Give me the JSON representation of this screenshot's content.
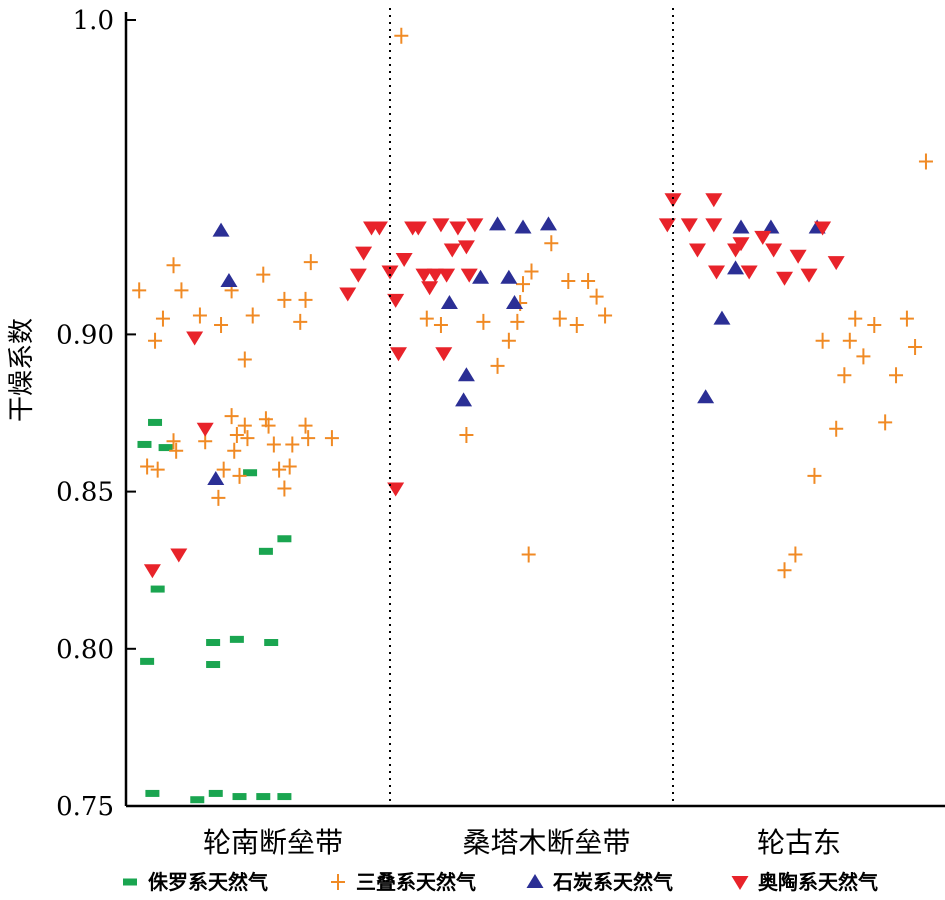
{
  "chart_data": {
    "type": "scatter",
    "title": "",
    "xlabel": "",
    "ylabel": "干燥系数",
    "ylim": [
      0.75,
      1.0
    ],
    "yticks": [
      "0.75",
      "0.80",
      "0.85",
      "0.90",
      "1.0"
    ],
    "ytick_values": [
      0.75,
      0.8,
      0.85,
      0.9,
      1.0
    ],
    "categories": [
      "轮南断垒带",
      "桑塔木断垒带",
      "轮古东"
    ],
    "grid": false,
    "legend_position": "bottom",
    "colors": {
      "Jurassic": "#1aa550",
      "Triassic": "#f08a24",
      "Carboniferous": "#2b2f95",
      "Ordovician": "#e8232a",
      "axis": "#000000",
      "divider": "#000000"
    },
    "series": [
      {
        "name": "侏罗系天然气",
        "marker": "dash",
        "color": "#1aa550",
        "points": [
          [
            0.07,
            0.865
          ],
          [
            0.11,
            0.872
          ],
          [
            0.15,
            0.864
          ],
          [
            0.08,
            0.796
          ],
          [
            0.12,
            0.819
          ],
          [
            0.33,
            0.802
          ],
          [
            0.33,
            0.795
          ],
          [
            0.42,
            0.803
          ],
          [
            0.55,
            0.802
          ],
          [
            0.47,
            0.856
          ],
          [
            0.53,
            0.831
          ],
          [
            0.6,
            0.835
          ],
          [
            0.1,
            0.754
          ],
          [
            0.27,
            0.752
          ],
          [
            0.34,
            0.754
          ],
          [
            0.43,
            0.753
          ],
          [
            0.52,
            0.753
          ],
          [
            0.6,
            0.753
          ]
        ]
      },
      {
        "name": "三叠系天然气",
        "marker": "plus",
        "color": "#f08a24",
        "points": [
          [
            0.05,
            0.914
          ],
          [
            0.11,
            0.898
          ],
          [
            0.14,
            0.905
          ],
          [
            0.18,
            0.922
          ],
          [
            0.21,
            0.914
          ],
          [
            0.28,
            0.906
          ],
          [
            0.36,
            0.903
          ],
          [
            0.4,
            0.914
          ],
          [
            0.45,
            0.892
          ],
          [
            0.48,
            0.906
          ],
          [
            0.52,
            0.919
          ],
          [
            0.6,
            0.911
          ],
          [
            0.66,
            0.904
          ],
          [
            0.68,
            0.911
          ],
          [
            0.7,
            0.923
          ],
          [
            0.08,
            0.858
          ],
          [
            0.12,
            0.857
          ],
          [
            0.18,
            0.866
          ],
          [
            0.19,
            0.863
          ],
          [
            0.3,
            0.866
          ],
          [
            0.35,
            0.848
          ],
          [
            0.37,
            0.857
          ],
          [
            0.4,
            0.874
          ],
          [
            0.41,
            0.863
          ],
          [
            0.42,
            0.868
          ],
          [
            0.43,
            0.855
          ],
          [
            0.45,
            0.871
          ],
          [
            0.46,
            0.867
          ],
          [
            0.53,
            0.873
          ],
          [
            0.54,
            0.871
          ],
          [
            0.56,
            0.865
          ],
          [
            0.58,
            0.857
          ],
          [
            0.6,
            0.851
          ],
          [
            0.62,
            0.858
          ],
          [
            0.63,
            0.865
          ],
          [
            0.68,
            0.871
          ],
          [
            0.69,
            0.867
          ],
          [
            0.78,
            0.867
          ],
          [
            1.13,
            0.905
          ],
          [
            1.18,
            0.903
          ],
          [
            1.27,
            0.868
          ],
          [
            1.33,
            0.904
          ],
          [
            1.38,
            0.89
          ],
          [
            1.42,
            0.898
          ],
          [
            1.45,
            0.904
          ],
          [
            1.47,
            0.916
          ],
          [
            1.5,
            0.92
          ],
          [
            1.49,
            0.83
          ],
          [
            1.46,
            0.91
          ],
          [
            1.57,
            0.929
          ],
          [
            1.6,
            0.905
          ],
          [
            1.63,
            0.917
          ],
          [
            1.66,
            0.903
          ],
          [
            1.7,
            0.917
          ],
          [
            1.73,
            0.912
          ],
          [
            1.76,
            0.906
          ],
          [
            1.04,
            0.995
          ],
          [
            2.41,
            0.825
          ],
          [
            2.45,
            0.83
          ],
          [
            2.52,
            0.855
          ],
          [
            2.55,
            0.898
          ],
          [
            2.6,
            0.87
          ],
          [
            2.63,
            0.887
          ],
          [
            2.65,
            0.898
          ],
          [
            2.67,
            0.905
          ],
          [
            2.7,
            0.893
          ],
          [
            2.74,
            0.903
          ],
          [
            2.78,
            0.872
          ],
          [
            2.82,
            0.887
          ],
          [
            2.86,
            0.905
          ],
          [
            2.89,
            0.896
          ],
          [
            2.93,
            0.955
          ]
        ]
      },
      {
        "name": "石炭系天然气",
        "marker": "triangle-up",
        "color": "#2b2f95",
        "points": [
          [
            0.34,
            0.854
          ],
          [
            0.36,
            0.933
          ],
          [
            0.39,
            0.917
          ],
          [
            1.21,
            0.91
          ],
          [
            1.26,
            0.879
          ],
          [
            1.27,
            0.887
          ],
          [
            1.32,
            0.918
          ],
          [
            1.38,
            0.935
          ],
          [
            1.42,
            0.918
          ],
          [
            1.44,
            0.91
          ],
          [
            1.47,
            0.934
          ],
          [
            1.56,
            0.935
          ],
          [
            2.12,
            0.88
          ],
          [
            2.18,
            0.905
          ],
          [
            2.23,
            0.921
          ],
          [
            2.25,
            0.934
          ],
          [
            2.36,
            0.934
          ],
          [
            2.53,
            0.934
          ]
        ]
      },
      {
        "name": "奥陶系天然气",
        "marker": "triangle-down",
        "color": "#e8232a",
        "points": [
          [
            0.26,
            0.899
          ],
          [
            0.3,
            0.87
          ],
          [
            0.1,
            0.825
          ],
          [
            0.2,
            0.83
          ],
          [
            0.84,
            0.913
          ],
          [
            0.88,
            0.919
          ],
          [
            0.9,
            0.926
          ],
          [
            0.93,
            0.934
          ],
          [
            0.96,
            0.934
          ],
          [
            1.0,
            0.92
          ],
          [
            1.02,
            0.911
          ],
          [
            1.05,
            0.924
          ],
          [
            1.08,
            0.934
          ],
          [
            1.1,
            0.934
          ],
          [
            1.12,
            0.919
          ],
          [
            1.14,
            0.915
          ],
          [
            1.16,
            0.919
          ],
          [
            1.18,
            0.935
          ],
          [
            1.2,
            0.919
          ],
          [
            1.22,
            0.927
          ],
          [
            1.24,
            0.934
          ],
          [
            1.27,
            0.928
          ],
          [
            1.28,
            0.919
          ],
          [
            1.3,
            0.935
          ],
          [
            1.03,
            0.894
          ],
          [
            1.19,
            0.894
          ],
          [
            1.02,
            0.851
          ],
          [
            1.98,
            0.935
          ],
          [
            2.0,
            0.943
          ],
          [
            2.06,
            0.935
          ],
          [
            2.09,
            0.927
          ],
          [
            2.15,
            0.943
          ],
          [
            2.15,
            0.935
          ],
          [
            2.16,
            0.92
          ],
          [
            2.23,
            0.927
          ],
          [
            2.25,
            0.929
          ],
          [
            2.28,
            0.92
          ],
          [
            2.33,
            0.931
          ],
          [
            2.37,
            0.927
          ],
          [
            2.41,
            0.918
          ],
          [
            2.46,
            0.925
          ],
          [
            2.5,
            0.919
          ],
          [
            2.55,
            0.934
          ],
          [
            2.6,
            0.923
          ]
        ]
      }
    ]
  }
}
